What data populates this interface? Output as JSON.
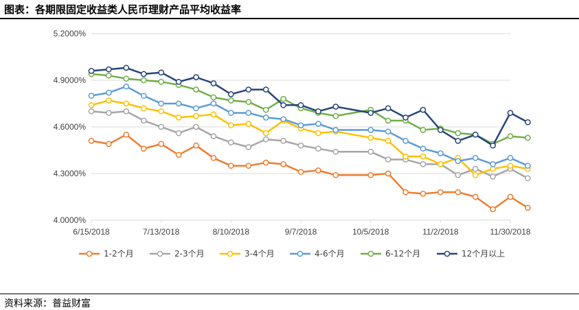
{
  "header": {
    "title": "图表：各期限固定收益类人民币理财产品平均收益率"
  },
  "footer": {
    "source": "资料来源：普益财富"
  },
  "chart_data": {
    "type": "line",
    "title": "",
    "xlabel": "",
    "ylabel": "",
    "ylim": [
      4.0,
      5.2
    ],
    "yticks": [
      "4.0000%",
      "4.3000%",
      "4.6000%",
      "4.9000%",
      "5.2000%"
    ],
    "xtick_labels": [
      "6/15/2018",
      "7/13/2018",
      "8/10/2018",
      "9/7/2018",
      "10/5/2018",
      "11/2/2018",
      "11/30/2018"
    ],
    "x": [
      "6/15/2018",
      "6/22/2018",
      "6/29/2018",
      "7/6/2018",
      "7/13/2018",
      "7/20/2018",
      "7/27/2018",
      "8/3/2018",
      "8/10/2018",
      "8/17/2018",
      "8/24/2018",
      "8/31/2018",
      "9/7/2018",
      "9/14/2018",
      "9/21/2018",
      "10/5/2018",
      "10/12/2018",
      "10/19/2018",
      "10/26/2018",
      "11/2/2018",
      "11/9/2018",
      "11/16/2018",
      "11/23/2018",
      "11/30/2018",
      "12/7/2018"
    ],
    "grid": "horizontal",
    "legend": "bottom",
    "series": [
      {
        "name": "1-2个月",
        "color": "#ED7D31",
        "values": [
          4.51,
          4.49,
          4.55,
          4.46,
          4.49,
          4.42,
          4.48,
          4.4,
          4.35,
          4.35,
          4.37,
          4.36,
          4.31,
          4.32,
          4.29,
          4.29,
          4.3,
          4.18,
          4.17,
          4.18,
          4.18,
          4.15,
          4.07,
          4.15,
          4.08
        ]
      },
      {
        "name": "2-3个月",
        "color": "#A5A5A5",
        "values": [
          4.7,
          4.69,
          4.7,
          4.64,
          4.6,
          4.56,
          4.6,
          4.54,
          4.5,
          4.47,
          4.52,
          4.51,
          4.48,
          4.46,
          4.44,
          4.44,
          4.39,
          4.39,
          4.36,
          4.36,
          4.29,
          4.33,
          4.28,
          4.33,
          4.27
        ]
      },
      {
        "name": "3-4个月",
        "color": "#FFC000",
        "values": [
          4.74,
          4.77,
          4.75,
          4.72,
          4.7,
          4.66,
          4.67,
          4.68,
          4.61,
          4.62,
          4.56,
          4.64,
          4.59,
          4.56,
          4.57,
          4.53,
          4.51,
          4.41,
          4.41,
          4.36,
          4.4,
          4.29,
          4.33,
          4.35,
          4.33
        ]
      },
      {
        "name": "4-6个月",
        "color": "#5B9BD5",
        "values": [
          4.8,
          4.82,
          4.86,
          4.8,
          4.75,
          4.75,
          4.72,
          4.75,
          4.69,
          4.69,
          4.66,
          4.65,
          4.61,
          4.62,
          4.58,
          4.58,
          4.57,
          4.51,
          4.46,
          4.43,
          4.38,
          4.4,
          4.36,
          4.4,
          4.35
        ]
      },
      {
        "name": "6-12个月",
        "color": "#70AD47",
        "values": [
          4.94,
          4.93,
          4.91,
          4.9,
          4.89,
          4.87,
          4.84,
          4.79,
          4.77,
          4.76,
          4.71,
          4.78,
          4.72,
          4.69,
          4.67,
          4.71,
          4.64,
          4.64,
          4.58,
          4.59,
          4.56,
          4.55,
          4.49,
          4.54,
          4.53
        ]
      },
      {
        "name": "12个月以上",
        "color": "#264478",
        "values": [
          4.96,
          4.97,
          4.98,
          4.94,
          4.95,
          4.89,
          4.92,
          4.88,
          4.81,
          4.84,
          4.84,
          4.74,
          4.74,
          4.7,
          4.73,
          4.69,
          4.72,
          4.66,
          4.71,
          4.58,
          4.51,
          4.55,
          4.48,
          4.69,
          4.63
        ]
      }
    ]
  }
}
